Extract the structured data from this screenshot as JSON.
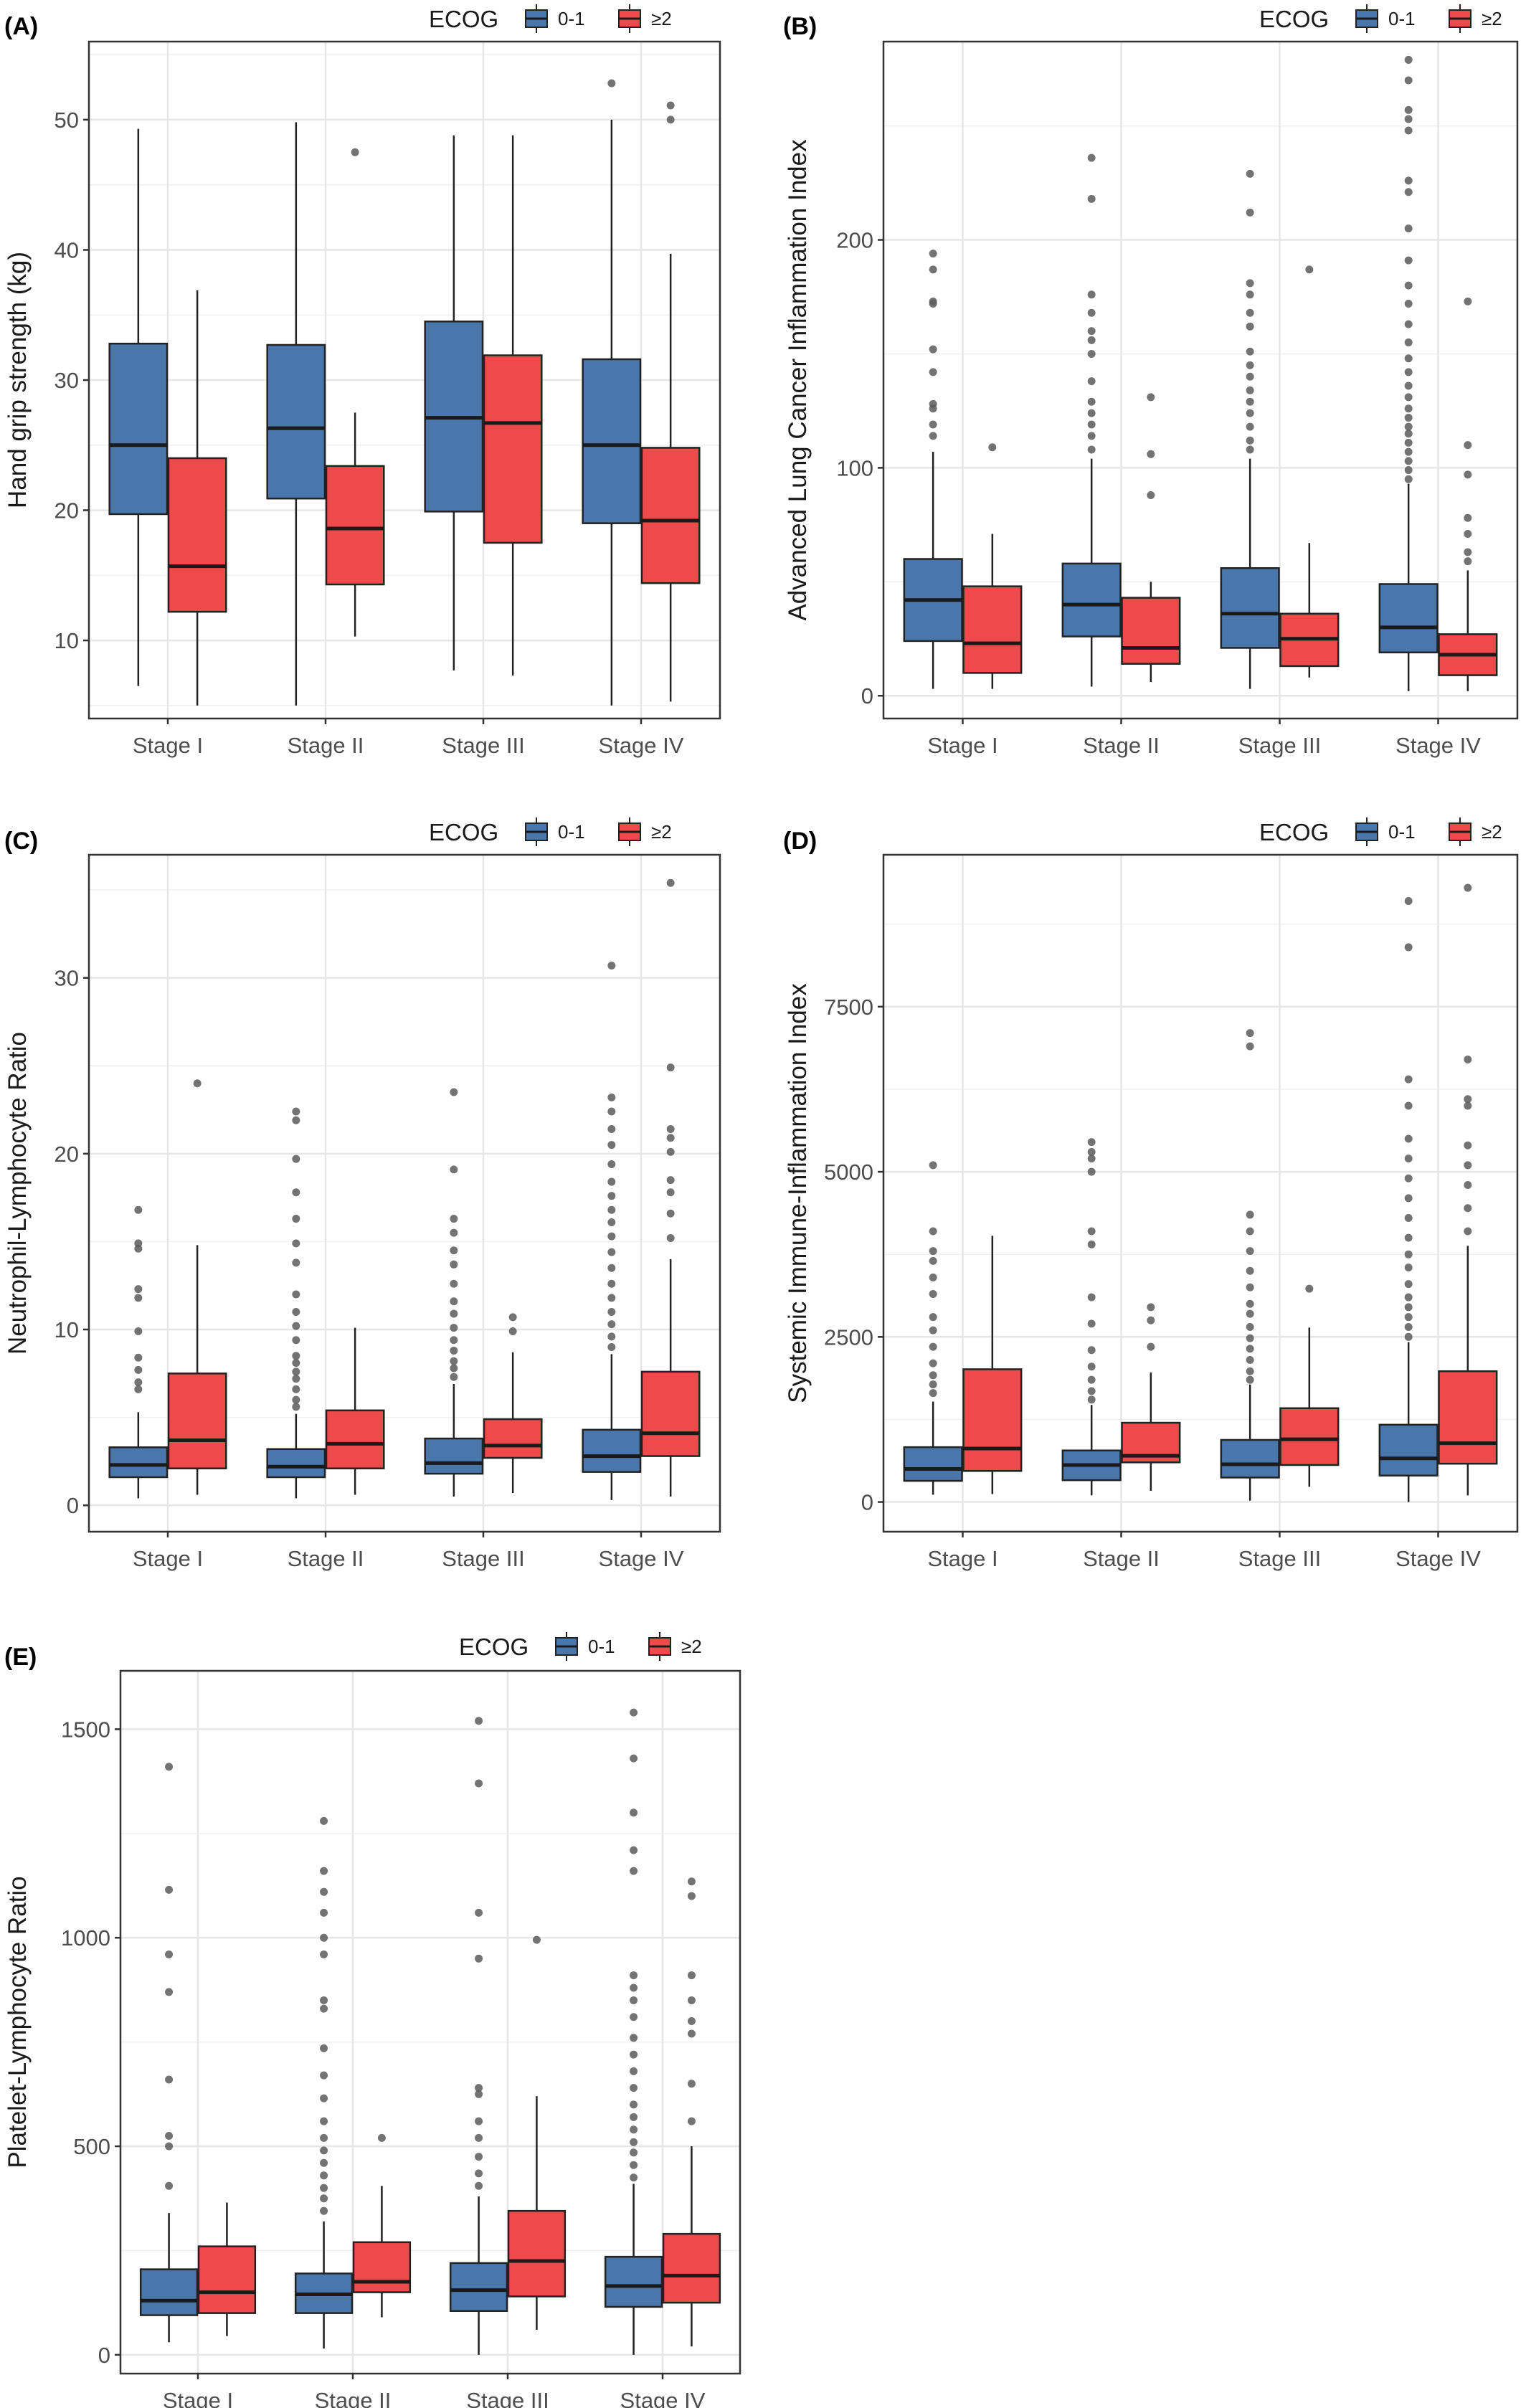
{
  "figure": {
    "legend_title": "ECOG",
    "groups": [
      "0-1",
      "≥2"
    ],
    "colors": {
      "0-1": "#4a77ab",
      "≥2": "#ee4a4b",
      "outlier": "#5a5a5a",
      "grid": "#e6e6e6",
      "frame": "#333333"
    }
  },
  "chart_data": [
    {
      "panel_label": "(A)",
      "type": "box",
      "ylabel": "Hand grip strength (kg)",
      "categories": [
        "Stage I",
        "Stage II",
        "Stage III",
        "Stage IV"
      ],
      "ylim": [
        4,
        56
      ],
      "yticks": [
        10,
        20,
        30,
        40,
        50
      ],
      "legend_position": "top-right",
      "series": [
        {
          "name": "0-1",
          "boxes": [
            {
              "min": 6.5,
              "q1": 19.7,
              "median": 25.0,
              "q3": 32.8,
              "max": 49.3,
              "outliers": []
            },
            {
              "min": 5.0,
              "q1": 20.9,
              "median": 26.3,
              "q3": 32.7,
              "max": 49.8,
              "outliers": []
            },
            {
              "min": 7.7,
              "q1": 19.9,
              "median": 27.1,
              "q3": 34.5,
              "max": 48.8,
              "outliers": []
            },
            {
              "min": 5.0,
              "q1": 19.0,
              "median": 25.0,
              "q3": 31.6,
              "max": 50.0,
              "outliers": [
                52.8
              ]
            }
          ]
        },
        {
          "name": "≥2",
          "boxes": [
            {
              "min": 5.0,
              "q1": 12.2,
              "median": 15.7,
              "q3": 24.0,
              "max": 36.9,
              "outliers": []
            },
            {
              "min": 10.3,
              "q1": 14.3,
              "median": 18.6,
              "q3": 23.4,
              "max": 27.5,
              "outliers": [
                47.5
              ]
            },
            {
              "min": 7.3,
              "q1": 17.5,
              "median": 26.7,
              "q3": 31.9,
              "max": 48.8,
              "outliers": []
            },
            {
              "min": 5.3,
              "q1": 14.4,
              "median": 19.2,
              "q3": 24.8,
              "max": 39.7,
              "outliers": [
                50.0,
                51.1
              ]
            }
          ]
        }
      ]
    },
    {
      "panel_label": "(B)",
      "type": "box",
      "ylabel": "Advanced Lung Cancer Inflammation Index",
      "categories": [
        "Stage I",
        "Stage II",
        "Stage III",
        "Stage IV"
      ],
      "ylim": [
        -10,
        287
      ],
      "yticks": [
        0,
        100,
        200
      ],
      "legend_position": "top-right",
      "series": [
        {
          "name": "0-1",
          "boxes": [
            {
              "min": 3,
              "q1": 24,
              "median": 42,
              "q3": 60,
              "max": 107,
              "outliers": [
                114,
                119,
                126,
                128,
                142,
                152,
                172,
                173,
                187,
                194
              ]
            },
            {
              "min": 4,
              "q1": 26,
              "median": 40,
              "q3": 58,
              "max": 104,
              "outliers": [
                108,
                114,
                119,
                124,
                129,
                138,
                150,
                156,
                160,
                168,
                176,
                218,
                236
              ]
            },
            {
              "min": 3,
              "q1": 21,
              "median": 36,
              "q3": 56,
              "max": 104,
              "outliers": [
                108,
                112,
                118,
                124,
                129,
                134,
                140,
                145,
                151,
                162,
                168,
                176,
                181,
                212,
                229
              ]
            },
            {
              "min": 2,
              "q1": 19,
              "median": 30,
              "q3": 49,
              "max": 93,
              "outliers": [
                95,
                99,
                103,
                107,
                111,
                115,
                118,
                122,
                126,
                131,
                136,
                142,
                148,
                155,
                163,
                172,
                180,
                191,
                205,
                221,
                226,
                248,
                253,
                257,
                270,
                279
              ]
            }
          ]
        },
        {
          "name": "≥2",
          "boxes": [
            {
              "min": 3,
              "q1": 10,
              "median": 23,
              "q3": 48,
              "max": 71,
              "outliers": [
                109
              ]
            },
            {
              "min": 6,
              "q1": 14,
              "median": 21,
              "q3": 43,
              "max": 50,
              "outliers": [
                88,
                106,
                131
              ]
            },
            {
              "min": 8,
              "q1": 13,
              "median": 25,
              "q3": 36,
              "max": 67,
              "outliers": [
                187
              ]
            },
            {
              "min": 2,
              "q1": 9,
              "median": 18,
              "q3": 27,
              "max": 55,
              "outliers": [
                59,
                63,
                71,
                78,
                97,
                110,
                173
              ]
            }
          ]
        }
      ]
    },
    {
      "panel_label": "(C)",
      "type": "box",
      "ylabel": "Neutrophil-Lymphocyte Ratio",
      "categories": [
        "Stage I",
        "Stage II",
        "Stage III",
        "Stage IV"
      ],
      "ylim": [
        -1.5,
        37
      ],
      "yticks": [
        0,
        10,
        20,
        30
      ],
      "legend_position": "top-right",
      "series": [
        {
          "name": "0-1",
          "boxes": [
            {
              "min": 0.4,
              "q1": 1.6,
              "median": 2.3,
              "q3": 3.3,
              "max": 5.3,
              "outliers": [
                6.6,
                7.0,
                7.7,
                8.4,
                9.9,
                11.8,
                12.3,
                14.6,
                14.9,
                16.8
              ]
            },
            {
              "min": 0.4,
              "q1": 1.6,
              "median": 2.2,
              "q3": 3.2,
              "max": 5.2,
              "outliers": [
                5.6,
                6.0,
                6.6,
                7.2,
                7.6,
                8.1,
                8.5,
                9.4,
                10.2,
                11.0,
                12.0,
                13.8,
                14.9,
                16.3,
                17.8,
                19.7,
                21.9,
                22.4
              ]
            },
            {
              "min": 0.5,
              "q1": 1.8,
              "median": 2.4,
              "q3": 3.8,
              "max": 6.9,
              "outliers": [
                7.3,
                7.8,
                8.2,
                8.8,
                9.4,
                10.1,
                10.9,
                11.6,
                12.6,
                13.7,
                14.5,
                15.5,
                16.3,
                19.1,
                23.5
              ]
            },
            {
              "min": 0.3,
              "q1": 1.9,
              "median": 2.8,
              "q3": 4.3,
              "max": 8.6,
              "outliers": [
                9.0,
                9.6,
                10.3,
                11.0,
                11.8,
                12.6,
                13.5,
                14.4,
                15.3,
                16.1,
                16.8,
                17.6,
                18.4,
                19.4,
                20.5,
                21.4,
                22.4,
                23.2,
                30.7
              ]
            }
          ]
        },
        {
          "name": "≥2",
          "boxes": [
            {
              "min": 0.6,
              "q1": 2.1,
              "median": 3.7,
              "q3": 7.5,
              "max": 14.8,
              "outliers": [
                24.0
              ]
            },
            {
              "min": 0.6,
              "q1": 2.1,
              "median": 3.5,
              "q3": 5.4,
              "max": 10.1,
              "outliers": []
            },
            {
              "min": 0.7,
              "q1": 2.7,
              "median": 3.4,
              "q3": 4.9,
              "max": 8.7,
              "outliers": [
                9.9,
                10.7
              ]
            },
            {
              "min": 0.5,
              "q1": 2.8,
              "median": 4.1,
              "q3": 7.6,
              "max": 14.0,
              "outliers": [
                15.2,
                16.6,
                17.8,
                18.5,
                20.1,
                20.9,
                21.4,
                24.9,
                35.4
              ]
            }
          ]
        }
      ]
    },
    {
      "panel_label": "(D)",
      "type": "box",
      "ylabel": "Systemic Immune-Inflammation Index",
      "categories": [
        "Stage I",
        "Stage II",
        "Stage III",
        "Stage IV"
      ],
      "ylim": [
        -450,
        9800
      ],
      "yticks": [
        0,
        2500,
        5000,
        7500
      ],
      "legend_position": "top-right",
      "series": [
        {
          "name": "0-1",
          "boxes": [
            {
              "min": 110,
              "q1": 320,
              "median": 500,
              "q3": 830,
              "max": 1520,
              "outliers": [
                1650,
                1780,
                1920,
                2100,
                2350,
                2600,
                2800,
                3150,
                3400,
                3650,
                3800,
                4100,
                5100
              ]
            },
            {
              "min": 100,
              "q1": 330,
              "median": 560,
              "q3": 780,
              "max": 1470,
              "outliers": [
                1550,
                1680,
                1850,
                2050,
                2300,
                2700,
                3100,
                3900,
                4100,
                5000,
                5200,
                5300,
                5450
              ]
            },
            {
              "min": 20,
              "q1": 370,
              "median": 570,
              "q3": 940,
              "max": 1780,
              "outliers": [
                1850,
                1980,
                2150,
                2320,
                2480,
                2650,
                2850,
                3000,
                3250,
                3500,
                3800,
                4100,
                4350,
                6900,
                7100
              ]
            },
            {
              "min": 0,
              "q1": 400,
              "median": 660,
              "q3": 1170,
              "max": 2420,
              "outliers": [
                2500,
                2650,
                2800,
                2950,
                3100,
                3300,
                3550,
                3750,
                4000,
                4300,
                4600,
                4900,
                5200,
                5500,
                6000,
                6400,
                8400,
                9100
              ]
            }
          ]
        },
        {
          "name": "≥2",
          "boxes": [
            {
              "min": 120,
              "q1": 470,
              "median": 810,
              "q3": 2010,
              "max": 4030,
              "outliers": []
            },
            {
              "min": 170,
              "q1": 600,
              "median": 700,
              "q3": 1200,
              "max": 1960,
              "outliers": [
                2350,
                2750,
                2950
              ]
            },
            {
              "min": 230,
              "q1": 560,
              "median": 950,
              "q3": 1420,
              "max": 2640,
              "outliers": [
                3230
              ]
            },
            {
              "min": 100,
              "q1": 580,
              "median": 890,
              "q3": 1980,
              "max": 3880,
              "outliers": [
                4100,
                4450,
                4800,
                5100,
                5400,
                6000,
                6100,
                6700,
                9300
              ]
            }
          ]
        }
      ]
    },
    {
      "panel_label": "(E)",
      "type": "box",
      "ylabel": "Platelet-Lymphocyte Ratio",
      "categories": [
        "Stage I",
        "Stage II",
        "Stage III",
        "Stage IV"
      ],
      "ylim": [
        -45,
        1640
      ],
      "yticks": [
        0,
        500,
        1000,
        1500
      ],
      "legend_position": "top-right",
      "series": [
        {
          "name": "0-1",
          "boxes": [
            {
              "min": 30,
              "q1": 95,
              "median": 130,
              "q3": 205,
              "max": 340,
              "outliers": [
                405,
                500,
                525,
                660,
                870,
                960,
                1115,
                1410
              ]
            },
            {
              "min": 15,
              "q1": 100,
              "median": 145,
              "q3": 195,
              "max": 320,
              "outliers": [
                345,
                375,
                400,
                430,
                460,
                490,
                520,
                560,
                615,
                670,
                735,
                830,
                850,
                960,
                1000,
                1060,
                1110,
                1160,
                1280
              ]
            },
            {
              "min": 0,
              "q1": 105,
              "median": 155,
              "q3": 220,
              "max": 380,
              "outliers": [
                405,
                435,
                475,
                520,
                560,
                625,
                640,
                950,
                1060,
                1370,
                1520
              ]
            },
            {
              "min": 0,
              "q1": 115,
              "median": 165,
              "q3": 235,
              "max": 410,
              "outliers": [
                425,
                455,
                485,
                510,
                540,
                570,
                600,
                640,
                680,
                720,
                760,
                810,
                850,
                880,
                910,
                1160,
                1210,
                1300,
                1430,
                1540
              ]
            }
          ]
        },
        {
          "name": "≥2",
          "boxes": [
            {
              "min": 45,
              "q1": 100,
              "median": 150,
              "q3": 260,
              "max": 365,
              "outliers": []
            },
            {
              "min": 90,
              "q1": 150,
              "median": 175,
              "q3": 270,
              "max": 405,
              "outliers": [
                520
              ]
            },
            {
              "min": 60,
              "q1": 140,
              "median": 225,
              "q3": 345,
              "max": 620,
              "outliers": [
                995
              ]
            },
            {
              "min": 20,
              "q1": 125,
              "median": 190,
              "q3": 290,
              "max": 500,
              "outliers": [
                560,
                650,
                770,
                800,
                850,
                910,
                1100,
                1135
              ]
            }
          ]
        }
      ]
    }
  ]
}
